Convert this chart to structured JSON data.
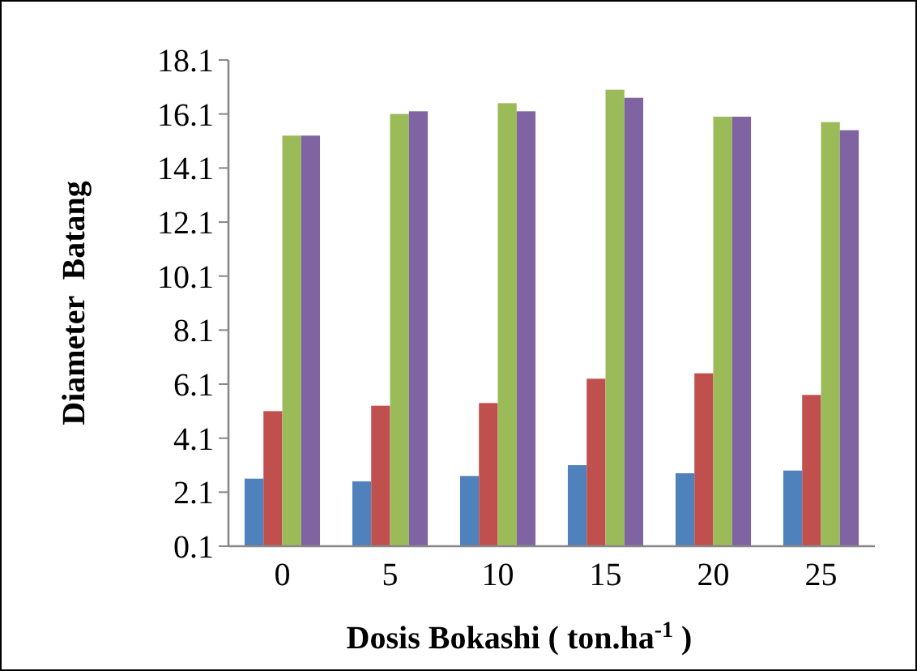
{
  "chart_data": {
    "type": "bar",
    "xlabel": "Dosis Bokashi ( ton.ha$^{-1}$ )",
    "ylabel": "Diameter  Batang",
    "categories": [
      "0",
      "5",
      "10",
      "15",
      "20",
      "25"
    ],
    "series": [
      {
        "color": "#4f81bd",
        "values": [
          2.6,
          2.5,
          2.7,
          3.1,
          2.8,
          2.9
        ]
      },
      {
        "color": "#c0504d",
        "values": [
          5.1,
          5.3,
          5.4,
          6.3,
          6.5,
          5.7
        ]
      },
      {
        "color": "#9bbb59",
        "values": [
          15.3,
          16.1,
          16.5,
          17.0,
          16.0,
          15.8
        ]
      },
      {
        "color": "#8064a2",
        "values": [
          15.3,
          16.2,
          16.2,
          16.7,
          16.0,
          15.5
        ]
      }
    ],
    "ylim": [
      0.1,
      18.1
    ],
    "yticks": [
      0.1,
      2.1,
      4.1,
      6.1,
      8.1,
      10.1,
      12.1,
      14.1,
      16.1,
      18.1
    ]
  }
}
